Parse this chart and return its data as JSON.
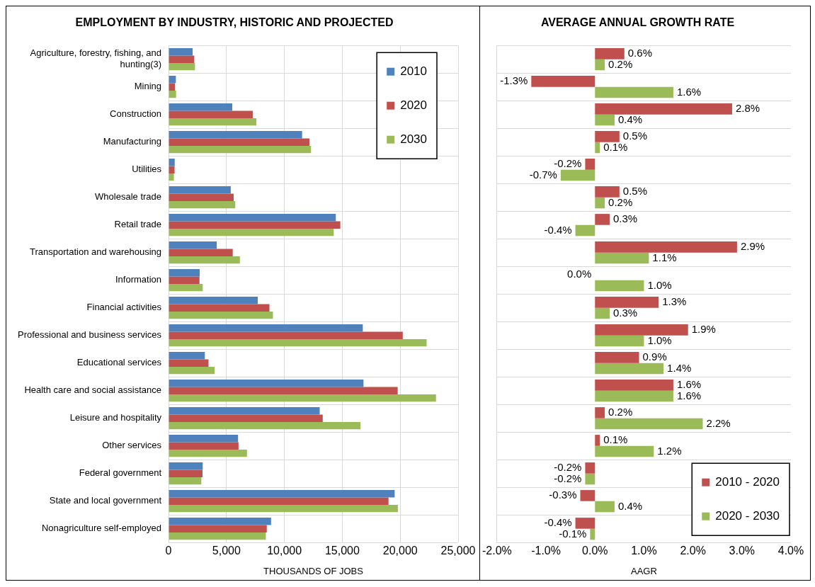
{
  "chart_data": [
    {
      "type": "bar",
      "orientation": "horizontal",
      "title": "EMPLOYMENT BY INDUSTRY, HISTORIC AND PROJECTED",
      "xlabel": "THOUSANDS OF JOBS",
      "categories": [
        "Agriculture, forestry, fishing, and hunting(3)",
        "Mining",
        "Construction",
        "Manufacturing",
        "Utilities",
        "Wholesale trade",
        "Retail trade",
        "Transportation and warehousing",
        "Information",
        "Financial activities",
        "Professional and business services",
        "Educational services",
        "Health care and social assistance",
        "Leisure and hospitality",
        "Other services",
        "Federal government",
        "State and local government",
        "Nonagriculture self-employed"
      ],
      "series": [
        {
          "name": "2010",
          "color": "#4f81bd",
          "values": [
            2080,
            630,
            5500,
            11530,
            530,
            5370,
            14440,
            4160,
            2690,
            7700,
            16770,
            3130,
            16830,
            13050,
            6000,
            2950,
            19520,
            8850
          ]
        },
        {
          "name": "2020",
          "color": "#c0504d",
          "values": [
            2220,
            550,
            7270,
            12160,
            520,
            5620,
            14830,
            5540,
            2670,
            8710,
            20220,
            3450,
            19780,
            13310,
            6040,
            2930,
            18990,
            8480
          ]
        },
        {
          "name": "2030",
          "color": "#9bbb59",
          "values": [
            2280,
            650,
            7580,
            12300,
            460,
            5760,
            14260,
            6160,
            2950,
            9010,
            22280,
            3980,
            23090,
            16570,
            6770,
            2830,
            19800,
            8400
          ]
        }
      ],
      "xlim": [
        0,
        25000
      ],
      "xticks": [
        0,
        {
          "value": 5000,
          "label": "5,000"
        },
        {
          "value": 10000,
          "label": "10,000"
        },
        {
          "value": 15000,
          "label": "15,000"
        },
        {
          "value": 20000,
          "label": "20,000"
        },
        {
          "value": 25000,
          "label": "25,000"
        }
      ],
      "grid": true,
      "legend": "top right"
    },
    {
      "type": "bar",
      "orientation": "horizontal",
      "title": "AVERAGE ANNUAL GROWTH RATE",
      "xlabel": "AAGR",
      "categories": [
        null,
        null,
        null,
        null,
        null,
        null,
        null,
        null,
        null,
        null,
        null,
        null,
        null,
        null,
        null,
        null,
        null,
        null
      ],
      "series": [
        {
          "name": "2010 - 2020",
          "color": "#c0504d",
          "values": [
            0.6,
            -1.3,
            2.8,
            0.5,
            -0.2,
            0.5,
            0.3,
            2.9,
            0.0,
            1.3,
            1.9,
            0.9,
            1.6,
            0.2,
            0.1,
            -0.2,
            -0.3,
            -0.4
          ],
          "value_labels": [
            "0.6%",
            "-1.3%",
            "2.8%",
            "0.5%",
            "-0.2%",
            "0.5%",
            "0.3%",
            "2.9%",
            "0.0%",
            "1.3%",
            "1.9%",
            "0.9%",
            "1.6%",
            "0.2%",
            "0.1%",
            "-0.2%",
            "-0.3%",
            "-0.4%"
          ]
        },
        {
          "name": "2020 - 2030",
          "color": "#9bbb59",
          "values": [
            0.2,
            1.6,
            0.4,
            0.1,
            -0.7,
            0.2,
            -0.4,
            1.1,
            1.0,
            0.3,
            1.0,
            1.4,
            1.6,
            2.2,
            1.2,
            -0.2,
            0.4,
            -0.1
          ],
          "value_labels": [
            "0.2%",
            "1.6%",
            "0.4%",
            "0.1%",
            "-0.7%",
            "0.2%",
            "-0.4%",
            "1.1%",
            "1.0%",
            "0.3%",
            "1.0%",
            "1.4%",
            "1.6%",
            "2.2%",
            "1.2%",
            "-0.2%",
            "0.4%",
            "-0.1%"
          ]
        }
      ],
      "xlim": [
        -2,
        4
      ],
      "xticks": [
        {
          "value": -2,
          "label": "-2.0%"
        },
        {
          "value": -1,
          "label": "-1.0%"
        },
        {
          "value": 0,
          "label": "0.0%"
        },
        {
          "value": 1,
          "label": "1.0%"
        },
        {
          "value": 2,
          "label": "2.0%"
        },
        {
          "value": 3,
          "label": "3.0%"
        },
        {
          "value": 4,
          "label": "4.0%"
        }
      ],
      "grid": "y",
      "legend": "bottom right",
      "tick_labels": "x"
    }
  ]
}
